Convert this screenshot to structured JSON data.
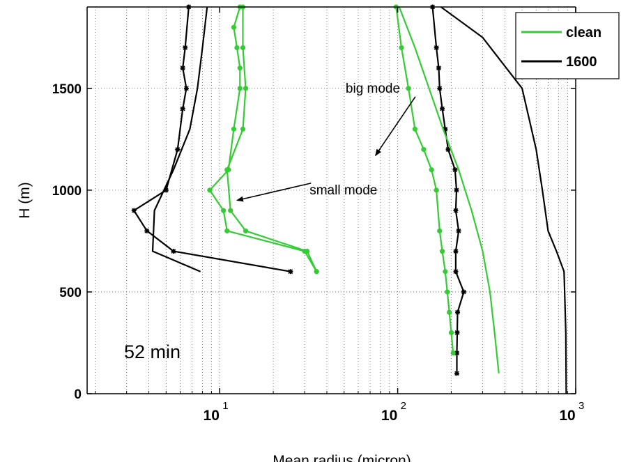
{
  "chart_data": {
    "type": "line",
    "xlabel": "Mean radius (micron)",
    "ylabel": "H (m)",
    "xscale": "log",
    "xlim": [
      1.8,
      1000
    ],
    "ylim": [
      0,
      1900
    ],
    "grid": true,
    "x_ticks": [
      {
        "base": "10",
        "exp": "1",
        "value": 10
      },
      {
        "base": "10",
        "exp": "2",
        "value": 100
      },
      {
        "base": "10",
        "exp": "3",
        "value": 1000
      }
    ],
    "y_ticks": [
      {
        "label": "0",
        "value": 0
      },
      {
        "label": "500",
        "value": 500
      },
      {
        "label": "1000",
        "value": 1000
      },
      {
        "label": "1500",
        "value": 1500
      }
    ],
    "legend": {
      "placement": "top-right",
      "entries": [
        {
          "name": "clean",
          "color": "#33cc33"
        },
        {
          "name": "1600",
          "color": "#000000"
        }
      ]
    },
    "annotations": [
      {
        "text": "big mode",
        "at": [
          51,
          1500
        ],
        "arrow_to": [
          75,
          1170
        ]
      },
      {
        "text": "small mode",
        "at": [
          32,
          1000
        ],
        "arrow_to": [
          12.5,
          950
        ]
      }
    ],
    "time_label": "52 min",
    "series": [
      {
        "legend": "1600",
        "color": "#000000",
        "marker": "star",
        "x": [
          6.7,
          6.4,
          6.2,
          6.5,
          6.2,
          5.8,
          5.0,
          3.3,
          3.9,
          5.5,
          25
        ],
        "y": [
          1900,
          1700,
          1600,
          1500,
          1400,
          1200,
          1000,
          900,
          800,
          700,
          600
        ]
      },
      {
        "legend": "1600",
        "color": "#000000",
        "marker": "none",
        "x": [
          8.5,
          8.0,
          7.5,
          6.8,
          5.5,
          4.3,
          4.2,
          7.8
        ],
        "y": [
          1900,
          1700,
          1500,
          1300,
          1100,
          900,
          700,
          600
        ]
      },
      {
        "legend": "clean",
        "color": "#33cc33",
        "marker": "dot",
        "x": [
          13,
          12,
          12.5,
          13,
          13,
          12,
          11.2,
          8.8,
          10.5,
          11,
          30,
          35
        ],
        "y": [
          1900,
          1800,
          1700,
          1600,
          1500,
          1300,
          1100,
          1000,
          900,
          800,
          700,
          600
        ]
      },
      {
        "legend": "clean",
        "color": "#33cc33",
        "marker": "dot",
        "x": [
          13.5,
          13.5,
          14,
          13.5,
          11,
          11.5,
          14,
          31,
          35
        ],
        "y": [
          1900,
          1700,
          1500,
          1300,
          1100,
          900,
          800,
          700,
          600
        ]
      },
      {
        "legend": "1600",
        "color": "#000000",
        "marker": "star",
        "x": [
          157,
          165,
          170,
          172,
          178,
          185,
          192,
          210,
          214,
          212,
          220,
          212,
          212,
          235,
          217,
          216,
          215,
          215
        ],
        "y": [
          1900,
          1700,
          1600,
          1500,
          1400,
          1300,
          1200,
          1100,
          1000,
          900,
          800,
          700,
          600,
          500,
          400,
          300,
          200,
          100
        ]
      },
      {
        "legend": "1600",
        "color": "#000000",
        "marker": "none",
        "x": [
          175,
          300,
          500,
          600,
          650,
          700,
          780,
          860,
          880,
          885
        ],
        "y": [
          1900,
          1750,
          1500,
          1200,
          1000,
          800,
          700,
          600,
          300,
          0
        ]
      },
      {
        "legend": "clean",
        "color": "#33cc33",
        "marker": "dot",
        "x": [
          98,
          105,
          115,
          125,
          140,
          155,
          165,
          172,
          178,
          185,
          190,
          195,
          200,
          205
        ],
        "y": [
          1900,
          1700,
          1500,
          1300,
          1200,
          1100,
          1000,
          800,
          700,
          600,
          500,
          400,
          300,
          200
        ]
      },
      {
        "legend": "clean",
        "color": "#33cc33",
        "marker": "none",
        "x": [
          102,
          125,
          150,
          180,
          220,
          260,
          300,
          330,
          350,
          370
        ],
        "y": [
          1900,
          1700,
          1500,
          1300,
          1100,
          900,
          700,
          500,
          300,
          100
        ]
      }
    ]
  }
}
